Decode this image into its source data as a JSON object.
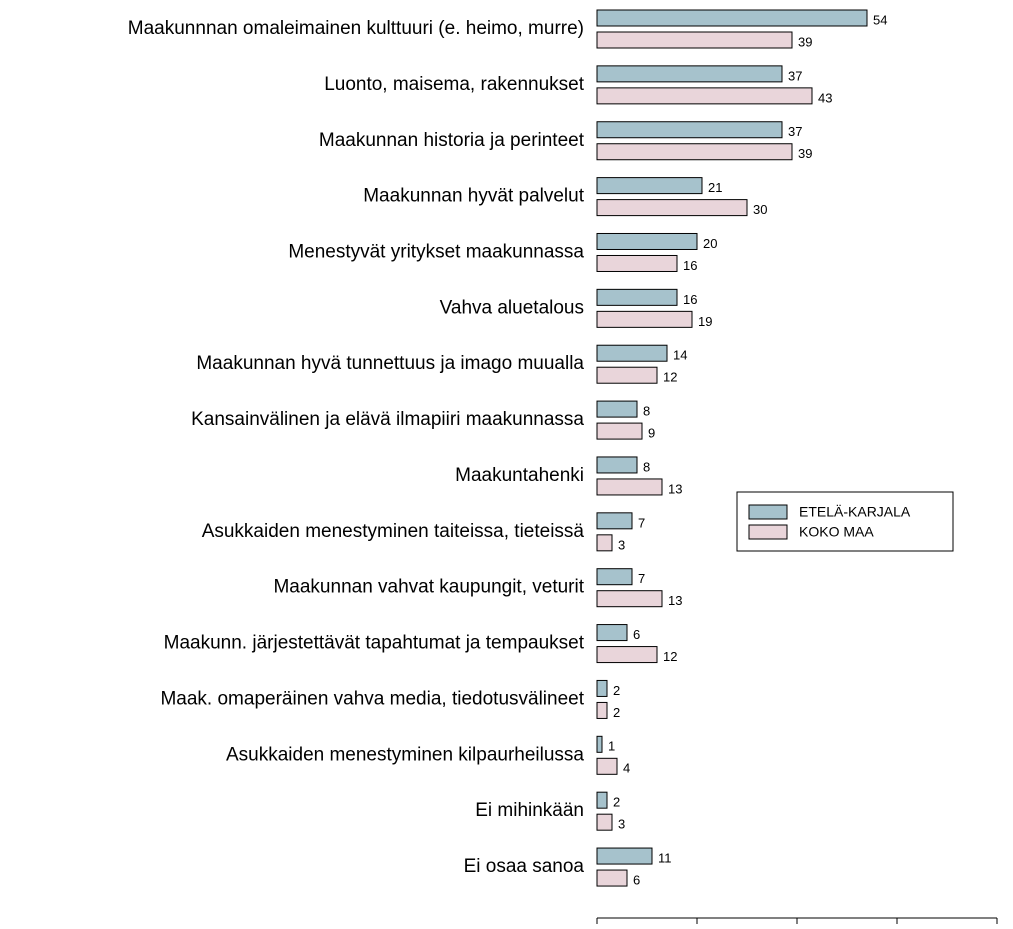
{
  "chart_data": {
    "type": "bar",
    "orientation": "horizontal",
    "categories": [
      "Maakunnnan omaleimainen kulttuuri (e. heimo, murre)",
      "Luonto, maisema, rakennukset",
      "Maakunnan historia ja perinteet",
      "Maakunnan hyvät palvelut",
      "Menestyvät yritykset maakunnassa",
      "Vahva aluetalous",
      "Maakunnan hyvä tunnettuus ja imago muualla",
      "Kansainvälinen ja elävä ilmapiiri maakunnassa",
      "Maakuntahenki",
      "Asukkaiden menestyminen taiteissa, tieteissä",
      "Maakunnan vahvat kaupungit, veturit",
      "Maakunn. järjestettävät tapahtumat ja tempaukset",
      "Maak. omaperäinen vahva media, tiedotusvälineet",
      "Asukkaiden menestyminen kilpaurheilussa",
      "Ei mihinkään",
      "Ei osaa sanoa"
    ],
    "series": [
      {
        "name": "ETELÄ-KARJALA",
        "color": "#a6c2cc",
        "values": [
          54,
          37,
          37,
          21,
          20,
          16,
          14,
          8,
          8,
          7,
          7,
          6,
          2,
          1,
          2,
          11
        ]
      },
      {
        "name": "KOKO MAA",
        "color": "#e9d5da",
        "values": [
          39,
          43,
          39,
          30,
          16,
          19,
          12,
          9,
          13,
          3,
          13,
          12,
          2,
          4,
          3,
          6
        ]
      }
    ],
    "xlim": [
      0,
      80
    ],
    "xticks": [
      0,
      20,
      40,
      60,
      80
    ],
    "legend": "right"
  }
}
